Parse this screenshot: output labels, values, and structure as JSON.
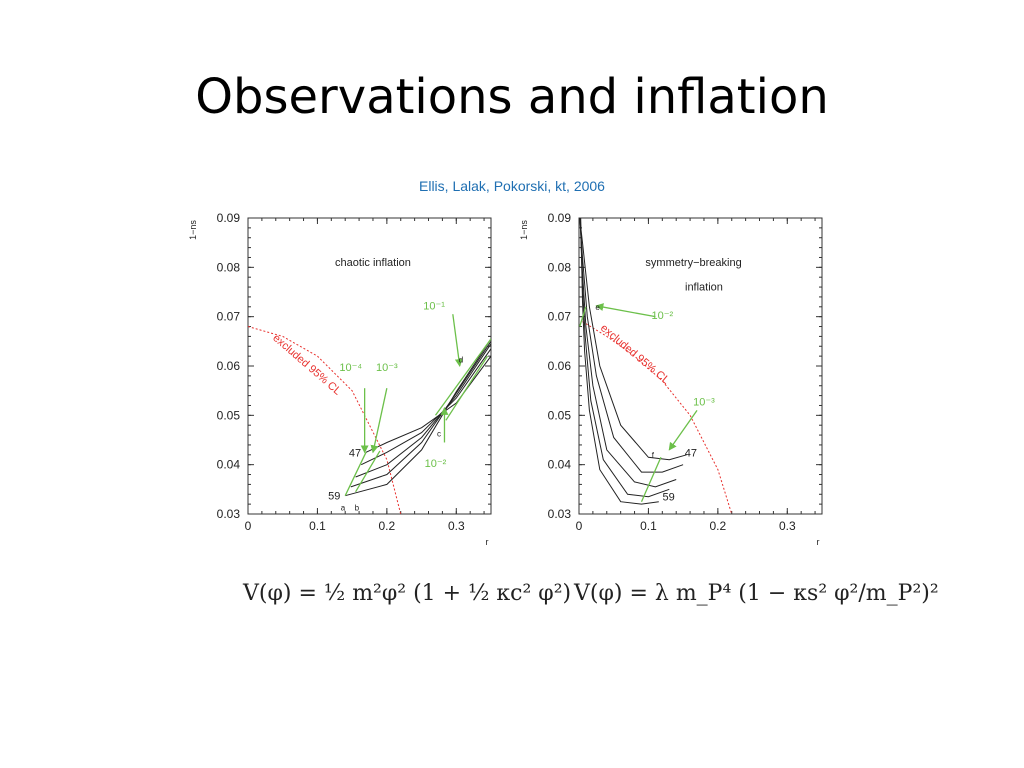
{
  "slide": {
    "title": "Observations and inflation",
    "citation": "Ellis, Lalak, Pokorski, kt, 2006"
  },
  "equations": {
    "left": "V(φ) = ½ m²φ² (1 + ½ κc² φ²)",
    "right": "V(φ) = λ m_P⁴ (1 − κs² φ²/m_P²)²"
  },
  "colors": {
    "curve": "#222222",
    "excluded": "#e8322f",
    "green": "#6cc04a",
    "citation": "#1f6fb2"
  },
  "chart_data": [
    {
      "type": "line",
      "title": "chaotic inflation",
      "xlabel": "r",
      "ylabel": "1−n_s",
      "xlim": [
        0,
        0.35
      ],
      "ylim": [
        0.03,
        0.09
      ],
      "x_ticks": [
        "0",
        "0.1",
        "0.2",
        "0.3"
      ],
      "y_ticks": [
        "0.03",
        "0.04",
        "0.05",
        "0.06",
        "0.07",
        "0.08",
        "0.09"
      ],
      "series": [
        {
          "x": [
            0.17,
            0.2,
            0.25,
            0.3,
            0.35
          ],
          "y": [
            0.0425,
            0.0445,
            0.0475,
            0.0525,
            0.062
          ]
        },
        {
          "x": [
            0.163,
            0.2,
            0.25,
            0.3,
            0.35
          ],
          "y": [
            0.04,
            0.0425,
            0.0465,
            0.0535,
            0.0635
          ]
        },
        {
          "x": [
            0.155,
            0.2,
            0.25,
            0.3,
            0.35
          ],
          "y": [
            0.0375,
            0.04,
            0.0455,
            0.054,
            0.0645
          ]
        },
        {
          "x": [
            0.148,
            0.2,
            0.25,
            0.3,
            0.35
          ],
          "y": [
            0.0355,
            0.038,
            0.0445,
            0.0545,
            0.065
          ]
        },
        {
          "x": [
            0.14,
            0.2,
            0.25,
            0.3,
            0.35
          ],
          "y": [
            0.0337,
            0.036,
            0.043,
            0.0548,
            0.0655
          ]
        }
      ],
      "excluded": {
        "label": "excluded 95% CL",
        "x": [
          0,
          0.05,
          0.1,
          0.15,
          0.2,
          0.22
        ],
        "y": [
          0.068,
          0.066,
          0.062,
          0.055,
          0.041,
          0.03
        ]
      },
      "green_lines": [
        {
          "x": [
            0.14,
            0.17
          ],
          "y": [
            0.0337,
            0.0425
          ]
        },
        {
          "x": [
            0.155,
            0.19
          ],
          "y": [
            0.0345,
            0.0428
          ]
        },
        {
          "x": [
            0.27,
            0.35
          ],
          "y": [
            0.05,
            0.0655
          ]
        },
        {
          "x": [
            0.285,
            0.345
          ],
          "y": [
            0.049,
            0.062
          ]
        }
      ],
      "arrows": [
        {
          "label": "10⁻¹",
          "from": [
            0.295,
            0.0705
          ],
          "to": [
            0.305,
            0.06
          ]
        },
        {
          "label": "10⁻⁴",
          "from": [
            0.168,
            0.0555
          ],
          "to": [
            0.168,
            0.0425
          ]
        },
        {
          "label": "10⁻³",
          "from": [
            0.2,
            0.0555
          ],
          "to": [
            0.18,
            0.0425
          ]
        },
        {
          "label": "10⁻²",
          "from": [
            0.283,
            0.0445
          ],
          "to": [
            0.283,
            0.0515
          ]
        }
      ],
      "annotations": [
        {
          "text": "chaotic inflation",
          "x": 0.18,
          "y": 0.0803
        },
        {
          "text": "47",
          "x": 0.163,
          "y": 0.0425
        },
        {
          "text": "59",
          "x": 0.133,
          "y": 0.0337
        },
        {
          "text": "a",
          "x": 0.14,
          "y": 0.0315
        },
        {
          "text": "b",
          "x": 0.16,
          "y": 0.0315
        },
        {
          "text": "c",
          "x": 0.278,
          "y": 0.0465
        },
        {
          "text": "d",
          "x": 0.31,
          "y": 0.0615
        }
      ],
      "arrow_label_positions": [
        {
          "x": 0.268,
          "y": 0.0715
        },
        {
          "x": 0.148,
          "y": 0.059
        },
        {
          "x": 0.2,
          "y": 0.059
        },
        {
          "x": 0.27,
          "y": 0.0395
        }
      ]
    },
    {
      "type": "line",
      "title": [
        "symmetry−breaking",
        "inflation"
      ],
      "xlabel": "r",
      "ylabel": "1−n_s",
      "xlim": [
        0,
        0.35
      ],
      "ylim": [
        0.03,
        0.09
      ],
      "x_ticks": [
        "0",
        "0.1",
        "0.2",
        "0.3"
      ],
      "y_ticks": [
        "0.03",
        "0.04",
        "0.05",
        "0.06",
        "0.07",
        "0.08",
        "0.09"
      ],
      "series": [
        {
          "x": [
            0.001,
            0.005,
            0.015,
            0.03,
            0.06,
            0.1,
            0.13,
            0.155
          ],
          "y": [
            0.09,
            0.085,
            0.072,
            0.06,
            0.048,
            0.0415,
            0.041,
            0.042
          ]
        },
        {
          "x": [
            0.0012,
            0.005,
            0.012,
            0.025,
            0.05,
            0.09,
            0.12,
            0.15
          ],
          "y": [
            0.09,
            0.082,
            0.07,
            0.058,
            0.0455,
            0.0385,
            0.0385,
            0.04
          ]
        },
        {
          "x": [
            0.0015,
            0.005,
            0.01,
            0.02,
            0.04,
            0.08,
            0.11,
            0.14
          ],
          "y": [
            0.09,
            0.079,
            0.068,
            0.056,
            0.043,
            0.0365,
            0.0355,
            0.037
          ]
        },
        {
          "x": [
            0.002,
            0.005,
            0.009,
            0.017,
            0.035,
            0.07,
            0.1,
            0.13
          ],
          "y": [
            0.09,
            0.076,
            0.066,
            0.053,
            0.041,
            0.034,
            0.0335,
            0.035
          ]
        },
        {
          "x": [
            0.0025,
            0.005,
            0.008,
            0.015,
            0.03,
            0.06,
            0.09,
            0.115
          ],
          "y": [
            0.09,
            0.073,
            0.063,
            0.051,
            0.039,
            0.0325,
            0.032,
            0.0325
          ]
        }
      ],
      "excluded": {
        "label": "excluded 95% CL",
        "x": [
          0.005,
          0.04,
          0.08,
          0.12,
          0.16,
          0.2,
          0.22
        ],
        "y": [
          0.069,
          0.066,
          0.062,
          0.057,
          0.05,
          0.039,
          0.03
        ]
      },
      "green_lines": [
        {
          "x": [
            0.09,
            0.118
          ],
          "y": [
            0.0325,
            0.0415
          ]
        },
        {
          "x": [
            0.001,
            0.01
          ],
          "y": [
            0.068,
            0.072
          ]
        }
      ],
      "arrows": [
        {
          "label": "10⁻²",
          "from": [
            0.11,
            0.07
          ],
          "to": [
            0.025,
            0.0722
          ]
        },
        {
          "label": "10⁻³",
          "from": [
            0.17,
            0.051
          ],
          "to": [
            0.13,
            0.043
          ]
        }
      ],
      "annotations": [
        {
          "text": "47",
          "x": 0.17,
          "y": 0.0425
        },
        {
          "text": "59",
          "x": 0.138,
          "y": 0.0335
        },
        {
          "text": "f",
          "x": 0.108,
          "y": 0.0422
        },
        {
          "text": "e",
          "x": 0.03,
          "y": 0.0722
        }
      ],
      "arrow_label_positions": [
        {
          "x": 0.12,
          "y": 0.0695
        },
        {
          "x": 0.18,
          "y": 0.052
        }
      ]
    }
  ]
}
